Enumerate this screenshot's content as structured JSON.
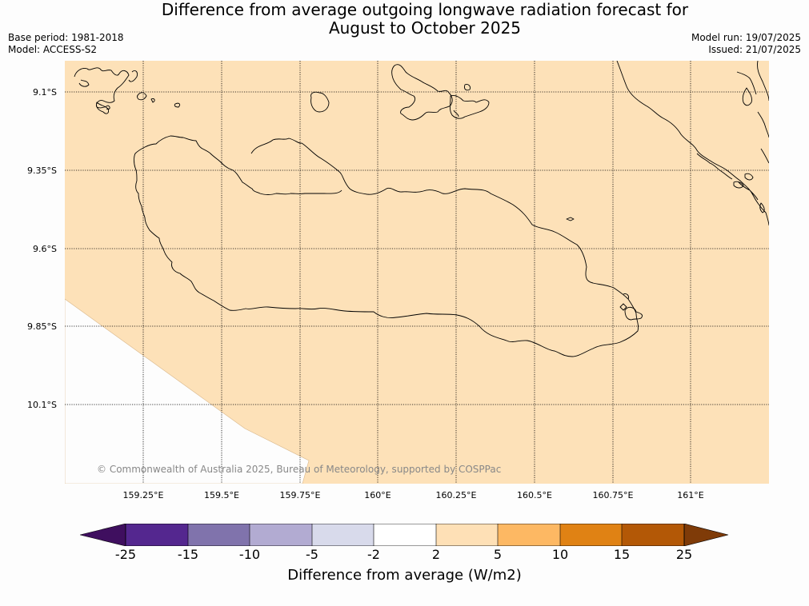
{
  "title_line1": "Difference from average outgoing longwave radiation forecast for",
  "title_line2": "August to October 2025",
  "base_period": "Base period: 1981-2018",
  "model": "Model: ACCESS-S2",
  "model_run": "Model run: 19/07/2025",
  "issued": "Issued: 21/07/2025",
  "latitude_labels": [
    "9.1°S",
    "9.35°S",
    "9.6°S",
    "9.85°S",
    "10.1°S"
  ],
  "longitude_labels": [
    "159.25°E",
    "159.5°E",
    "159.75°E",
    "160°E",
    "160.25°E",
    "160.5°E",
    "160.75°E",
    "161°E"
  ],
  "copyright": "© Commonwealth of Australia 2025, Bureau of Meteorology, supported by COSPPac",
  "colorbar": {
    "label": "Difference from average (W/m2)",
    "ticks": [
      "-25",
      "-15",
      "-10",
      "-5",
      "-2",
      "2",
      "5",
      "10",
      "15",
      "25"
    ],
    "colors": [
      "#3f0f5f",
      "#54278f",
      "#8073ac",
      "#b2abd2",
      "#d8daeb",
      "#ffffff",
      "#fee0b6",
      "#fdb863",
      "#e08214",
      "#b35806",
      "#7f3b08"
    ]
  },
  "map_fill_color": "#fde1b8",
  "coastline_color": "#000000"
}
